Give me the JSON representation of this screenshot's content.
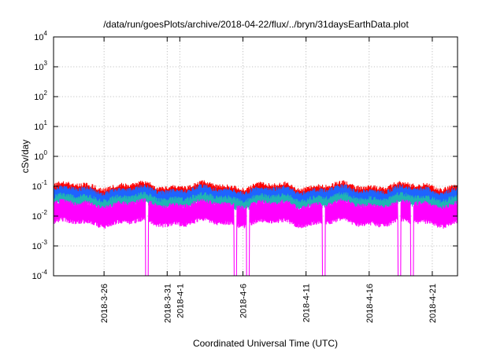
{
  "chart_data": {
    "type": "line",
    "title": "/data/run/goesPlots/archive/2018-04-22/flux/../bryn/31daysEarthData.plot",
    "xlabel": "Coordinated Universal Time (UTC)",
    "ylabel": "cSv/day",
    "y_scale": "log",
    "ylim": [
      0.0001,
      10000
    ],
    "y_ticks": [
      {
        "base": "10",
        "exp": "-4",
        "value": 0.0001
      },
      {
        "base": "10",
        "exp": "-3",
        "value": 0.001
      },
      {
        "base": "10",
        "exp": "-2",
        "value": 0.01
      },
      {
        "base": "10",
        "exp": "-1",
        "value": 0.1
      },
      {
        "base": "10",
        "exp": "0",
        "value": 1
      },
      {
        "base": "10",
        "exp": "1",
        "value": 10
      },
      {
        "base": "10",
        "exp": "2",
        "value": 100
      },
      {
        "base": "10",
        "exp": "3",
        "value": 1000
      },
      {
        "base": "10",
        "exp": "4",
        "value": 10000
      }
    ],
    "xlim": [
      "2018-03-22",
      "2018-04-23"
    ],
    "x_ticks": [
      "2018-3-26",
      "2018-3-31",
      "2018-4-1",
      "2018-4-6",
      "2018-4-11",
      "2018-4-16",
      "2018-4-21"
    ],
    "grid": true,
    "series": [
      {
        "color": "#ff0000",
        "typical_range": [
          0.03,
          0.12
        ]
      },
      {
        "color": "#1e64ff",
        "typical_range": [
          0.025,
          0.09
        ]
      },
      {
        "color": "#20b4b4",
        "typical_range": [
          0.018,
          0.05
        ]
      },
      {
        "color": "#ff00ff",
        "typical_range": [
          0.005,
          0.03
        ]
      }
    ],
    "dropouts": [
      "2018-03-29",
      "2018-04-05",
      "2018-04-06",
      "2018-04-12",
      "2018-04-18",
      "2018-04-19"
    ]
  }
}
